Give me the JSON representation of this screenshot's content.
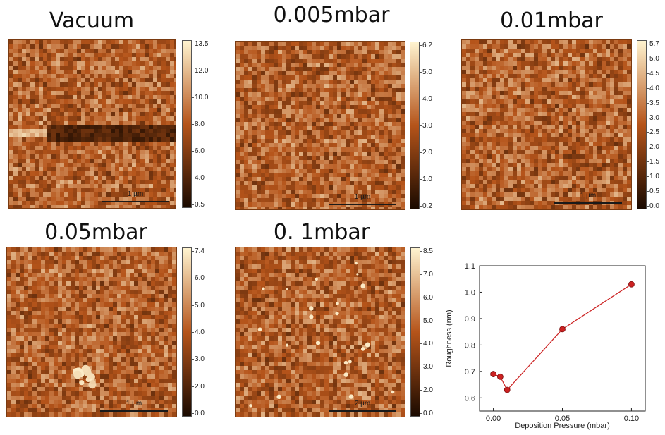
{
  "panels": [
    {
      "title": "Vacuum",
      "scale_label": "1 µm",
      "colorbar_ticks": [
        "13.5",
        "12.0",
        "10.0",
        "8.0",
        "6.0",
        "4.0",
        "0.5"
      ],
      "noise_seed": 1,
      "feature": "streak"
    },
    {
      "title": "0.005mbar",
      "scale_label": "1 µm",
      "colorbar_ticks": [
        "6.2",
        "5.0",
        "4.0",
        "3.0",
        "2.0",
        "1.0",
        "0.2"
      ],
      "noise_seed": 2,
      "feature": "none"
    },
    {
      "title": "0.01mbar",
      "scale_label": "1 µm",
      "colorbar_ticks": [
        "5.7",
        "5.0",
        "4.5",
        "4.0",
        "3.5",
        "3.0",
        "2.5",
        "2.0",
        "1.5",
        "1.0",
        "0.5",
        "0.0"
      ],
      "noise_seed": 3,
      "feature": "none"
    },
    {
      "title": "0.05mbar",
      "scale_label": "1 µm",
      "colorbar_ticks": [
        "7.4",
        "6.0",
        "5.0",
        "4.0",
        "3.0",
        "2.0",
        "0.0"
      ],
      "noise_seed": 4,
      "feature": "blob"
    },
    {
      "title": "0. 1mbar",
      "scale_label": "2 µm",
      "colorbar_ticks": [
        "8.5",
        "7.0",
        "6.0",
        "5.0",
        "4.0",
        "3.0",
        "2.0",
        "0.0"
      ],
      "noise_seed": 5,
      "feature": "particles"
    }
  ],
  "colors": {
    "afm_dark": "#1a0a00",
    "afm_mid": "#b5541a",
    "afm_light": "#fff4d0",
    "series": "#cc2222"
  },
  "chart_data": {
    "type": "line",
    "title": "",
    "xlabel": "Deposition Pressure (mbar)",
    "ylabel": "Roughness (nm)",
    "xlim": [
      -0.01,
      0.11
    ],
    "ylim": [
      0.55,
      1.1
    ],
    "xticks": [
      "0.00",
      "0.05",
      "0.10"
    ],
    "yticks": [
      "0.6",
      "0.7",
      "0.8",
      "0.9",
      "1.0",
      "1.1"
    ],
    "series": [
      {
        "x": [
          0.0,
          0.005,
          0.01,
          0.05,
          0.1
        ],
        "y": [
          0.69,
          0.68,
          0.63,
          0.86,
          1.03
        ]
      }
    ]
  }
}
